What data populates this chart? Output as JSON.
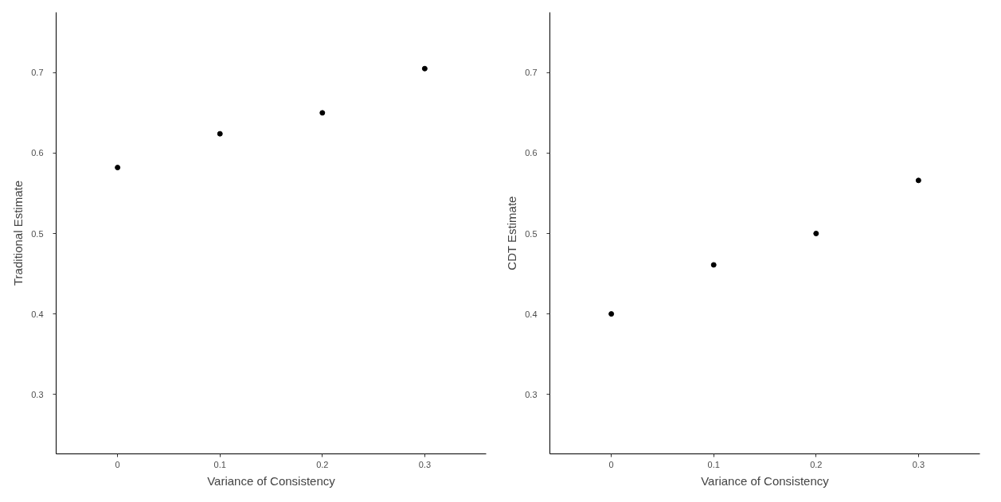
{
  "chart_data": [
    {
      "type": "scatter",
      "xlabel": "Variance of Consistency",
      "ylabel": "Traditional Estimate",
      "x": [
        0,
        0.1,
        0.2,
        0.3
      ],
      "values": [
        0.582,
        0.624,
        0.65,
        0.705
      ],
      "color": "#000000",
      "marker": "circle",
      "xlim": [
        -0.06,
        0.36
      ],
      "ylim": [
        0.226,
        0.775
      ],
      "xticks": [
        0,
        0.1,
        0.2,
        0.3
      ],
      "yticks": [
        0.3,
        0.4,
        0.5,
        0.6,
        0.7
      ],
      "grid": false
    },
    {
      "type": "scatter",
      "xlabel": "Variance of Consistency",
      "ylabel": "CDT Estimate",
      "x": [
        0,
        0.1,
        0.2,
        0.3
      ],
      "values": [
        0.4,
        0.461,
        0.5,
        0.566
      ],
      "color": "#000000",
      "marker": "circle",
      "xlim": [
        -0.06,
        0.36
      ],
      "ylim": [
        0.226,
        0.775
      ],
      "xticks": [
        0,
        0.1,
        0.2,
        0.3
      ],
      "yticks": [
        0.3,
        0.4,
        0.5,
        0.6,
        0.7
      ],
      "grid": false
    }
  ]
}
